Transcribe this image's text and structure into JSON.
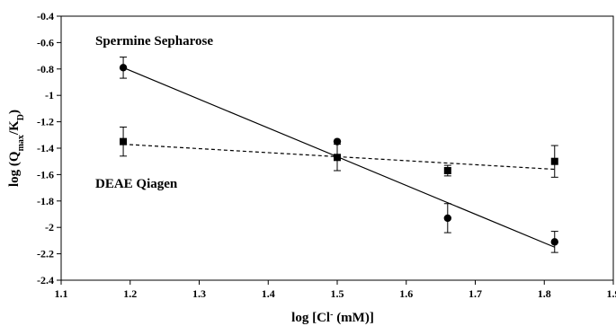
{
  "chart_data": {
    "type": "scatter",
    "xlabel_parts": {
      "pre": "log [Cl",
      "sup": "-",
      "post": " (mM)]"
    },
    "ylabel_parts": {
      "pre": "log (Q",
      "sub1": "max",
      "mid": "/K",
      "sub2": "D",
      "post": ")"
    },
    "xlim": [
      1.1,
      1.9
    ],
    "ylim": [
      -2.4,
      -0.4
    ],
    "x_ticks": [
      1.1,
      1.2,
      1.3,
      1.4,
      1.5,
      1.6,
      1.7,
      1.8,
      1.9
    ],
    "x_tick_labels": [
      "1.1",
      "1.2",
      "1.3",
      "1.4",
      "1.5",
      "1.6",
      "1.7",
      "1.8",
      "1.9"
    ],
    "y_ticks": [
      -0.4,
      -0.6,
      -0.8,
      -1.0,
      -1.2,
      -1.4,
      -1.6,
      -1.8,
      -2.0,
      -2.2,
      -2.4
    ],
    "y_tick_labels": [
      "-0.4",
      "-0.6",
      "-0.8",
      "-1",
      "-1.2",
      "-1.4",
      "-1.6",
      "-1.8",
      "-2",
      "-2.2",
      "-2.4"
    ],
    "grid": false,
    "series": [
      {
        "name": "Spermine Sepharose",
        "marker": "circle",
        "line": "solid",
        "points": [
          {
            "x": 1.19,
            "y": -0.79,
            "err": 0.08
          },
          {
            "x": 1.5,
            "y": -1.35,
            "err": 0.0
          },
          {
            "x": 1.66,
            "y": -1.93,
            "err": 0.11
          },
          {
            "x": 1.815,
            "y": -2.11,
            "err": 0.08
          }
        ],
        "fit": [
          [
            1.19,
            -0.79
          ],
          [
            1.815,
            -2.15
          ]
        ]
      },
      {
        "name": "DEAE Qiagen",
        "marker": "square",
        "line": "dashed",
        "points": [
          {
            "x": 1.19,
            "y": -1.35,
            "err": 0.11
          },
          {
            "x": 1.5,
            "y": -1.47,
            "err": 0.1
          },
          {
            "x": 1.66,
            "y": -1.57,
            "err": 0.04
          },
          {
            "x": 1.815,
            "y": -1.5,
            "err": 0.12
          }
        ],
        "fit": [
          [
            1.19,
            -1.37
          ],
          [
            1.815,
            -1.56
          ]
        ]
      }
    ]
  }
}
